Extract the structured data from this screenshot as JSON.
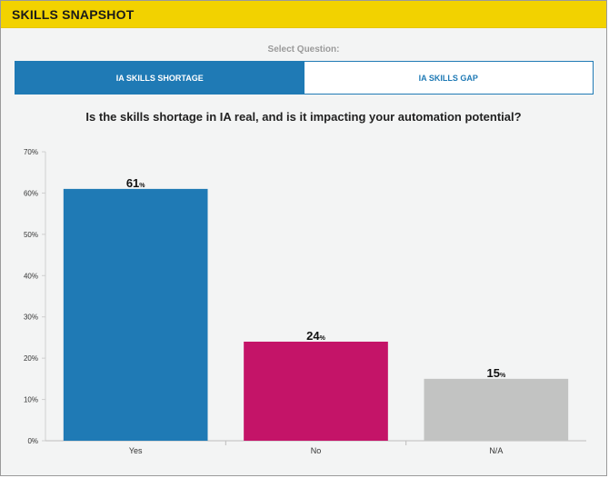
{
  "header": {
    "title": "SKILLS SNAPSHOT"
  },
  "selector": {
    "label": "Select Question:",
    "tabs": [
      {
        "label": "IA SKILLS SHORTAGE",
        "active": true
      },
      {
        "label": "IA SKILLS GAP",
        "active": false
      }
    ]
  },
  "question": "Is the skills shortage in IA real, and is it impacting your automation potential?",
  "colors": {
    "header": "#f2d200",
    "accent": "#1f7ab5"
  },
  "chart_data": {
    "type": "bar",
    "categories": [
      "Yes",
      "No",
      "N/A"
    ],
    "values": [
      61,
      24,
      15
    ],
    "value_unit": "%",
    "colors": [
      "#1f7ab5",
      "#c41468",
      "#c2c3c2"
    ],
    "ylim": [
      0,
      70
    ],
    "yticks": [
      "0%",
      "10%",
      "20%",
      "30%",
      "40%",
      "50%",
      "60%",
      "70%"
    ],
    "grid": false
  }
}
